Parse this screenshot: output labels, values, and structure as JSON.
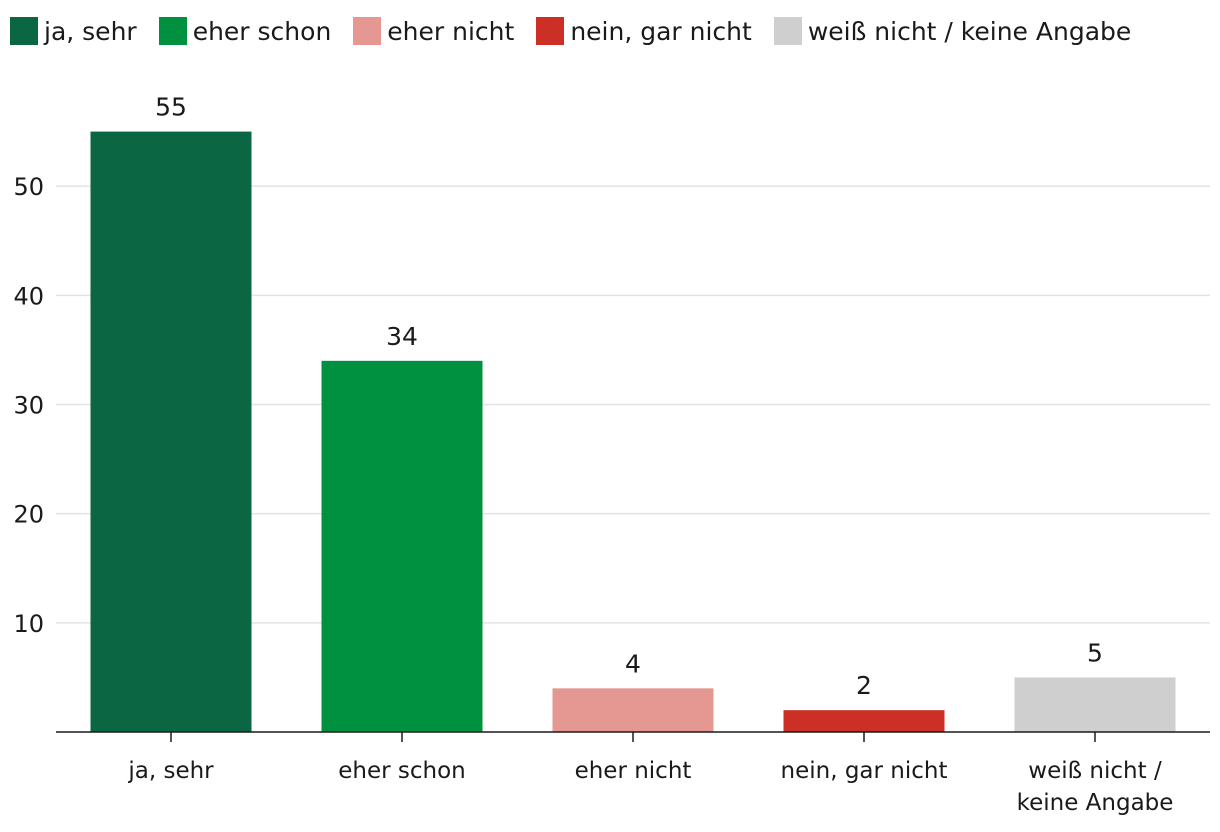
{
  "chart_data": {
    "type": "bar",
    "categories": [
      [
        "ja, sehr"
      ],
      [
        "eher schon"
      ],
      [
        "eher nicht"
      ],
      [
        "nein, gar nicht"
      ],
      [
        "weiß nicht /",
        "keine Angabe"
      ]
    ],
    "values": [
      55,
      34,
      4,
      2,
      5
    ],
    "colors": [
      "#0b6643",
      "#009140",
      "#e59792",
      "#cc2f26",
      "#cfcfcf"
    ],
    "legend": [
      {
        "label": "ja, sehr",
        "color": "#0b6643"
      },
      {
        "label": "eher schon",
        "color": "#009140"
      },
      {
        "label": "eher nicht",
        "color": "#e59792"
      },
      {
        "label": "nein, gar nicht",
        "color": "#cc2f26"
      },
      {
        "label": "weiß nicht / keine Angabe",
        "color": "#cfcfcf"
      }
    ],
    "legend_position": "top-left",
    "yticks": [
      10,
      20,
      30,
      40,
      50
    ],
    "ylim": [
      0,
      60
    ],
    "grid": true,
    "title": "",
    "xlabel": "",
    "ylabel": ""
  }
}
